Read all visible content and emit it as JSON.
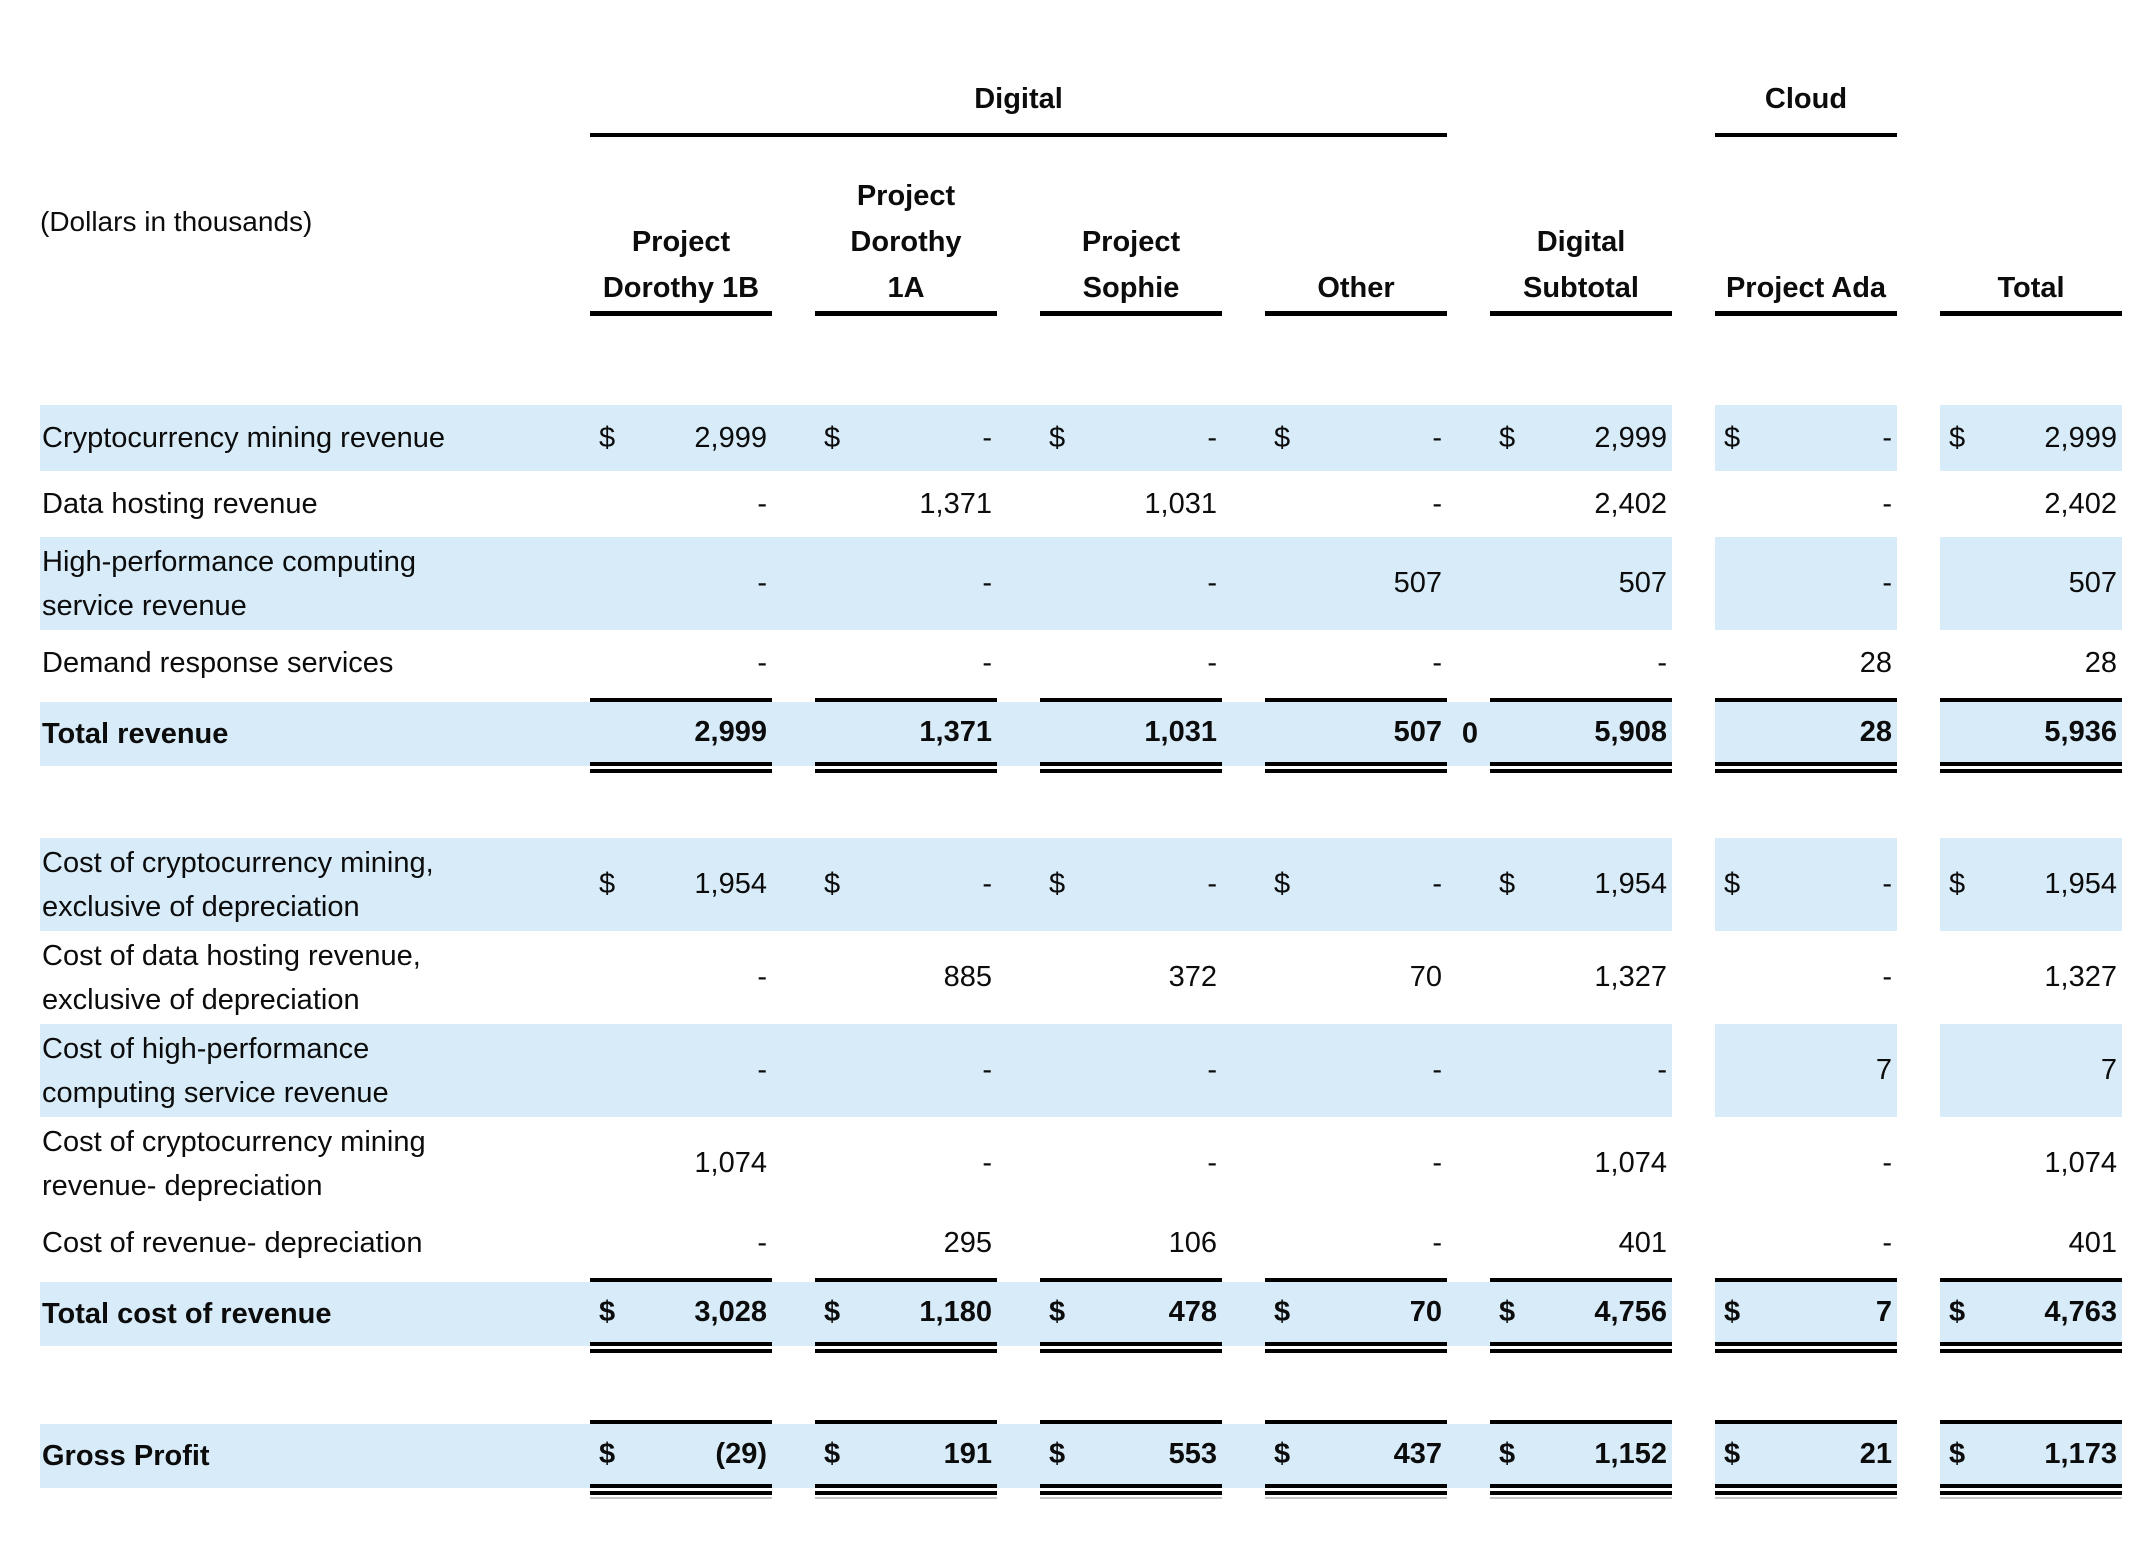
{
  "report": {
    "units_label": "(Dollars in thousands)",
    "currency_symbol": "$",
    "group_headers": [
      {
        "label": "Digital",
        "spans_columns": [
          "Project Dorothy 1B",
          "Project Dorothy 1A",
          "Project Sophie",
          "Other"
        ]
      },
      {
        "label": "Cloud",
        "spans_columns": [
          "Project Ada"
        ]
      }
    ],
    "columns": [
      {
        "label_lines": [
          "Project",
          "Dorothy 1B"
        ]
      },
      {
        "label_lines": [
          "Project",
          "Dorothy",
          "1A"
        ]
      },
      {
        "label_lines": [
          "Project",
          "Sophie"
        ]
      },
      {
        "label_lines": [
          "Other"
        ]
      },
      {
        "label_lines": [
          "Digital",
          "Subtotal"
        ]
      },
      {
        "label_lines": [
          "Project Ada"
        ]
      },
      {
        "label_lines": [
          "Total"
        ]
      }
    ],
    "rows": [
      {
        "label_lines": [
          "Cryptocurrency mining revenue"
        ],
        "highlight": true,
        "bold": false,
        "dollar": true,
        "values": [
          "2,999",
          "-",
          "-",
          "-",
          "2,999",
          "-",
          "2,999"
        ]
      },
      {
        "label_lines": [
          "Data hosting revenue"
        ],
        "highlight": false,
        "bold": false,
        "dollar": false,
        "values": [
          "-",
          "1,371",
          "1,031",
          "-",
          "2,402",
          "-",
          "2,402"
        ]
      },
      {
        "label_lines": [
          "High-performance computing",
          "service revenue"
        ],
        "highlight": true,
        "bold": false,
        "dollar": false,
        "values": [
          "-",
          "-",
          "-",
          "507",
          "507",
          "-",
          "507"
        ]
      },
      {
        "label_lines": [
          "Demand response services"
        ],
        "highlight": false,
        "bold": false,
        "dollar": false,
        "values": [
          "-",
          "-",
          "-",
          "-",
          "-",
          "28",
          "28"
        ]
      },
      {
        "label_lines": [
          "Total revenue"
        ],
        "highlight": true,
        "bold": true,
        "dollar": false,
        "values": [
          "2,999",
          "1,371",
          "1,031",
          "507",
          "5,908",
          "28",
          "5,936"
        ],
        "rules": "double",
        "spacer_after": true,
        "extra_value": {
          "after_col": 3,
          "text": "0"
        }
      },
      {
        "label_lines": [
          "Cost of cryptocurrency mining,",
          "exclusive of depreciation"
        ],
        "highlight": true,
        "bold": false,
        "dollar": true,
        "values": [
          "1,954",
          "-",
          "-",
          "-",
          "1,954",
          "-",
          "1,954"
        ]
      },
      {
        "label_lines": [
          "Cost of data hosting revenue,",
          "exclusive of depreciation"
        ],
        "highlight": false,
        "bold": false,
        "dollar": false,
        "values": [
          "-",
          "885",
          "372",
          "70",
          "1,327",
          "-",
          "1,327"
        ]
      },
      {
        "label_lines": [
          "Cost of high-performance",
          "computing service revenue"
        ],
        "highlight": true,
        "bold": false,
        "dollar": false,
        "values": [
          "-",
          "-",
          "-",
          "-",
          "-",
          "7",
          "7"
        ]
      },
      {
        "label_lines": [
          "Cost of cryptocurrency mining",
          "revenue- depreciation"
        ],
        "highlight": false,
        "bold": false,
        "dollar": false,
        "values": [
          "1,074",
          "-",
          "-",
          "-",
          "1,074",
          "-",
          "1,074"
        ]
      },
      {
        "label_lines": [
          "Cost of revenue- depreciation"
        ],
        "highlight": false,
        "bold": false,
        "dollar": false,
        "values": [
          "-",
          "295",
          "106",
          "-",
          "401",
          "-",
          "401"
        ]
      },
      {
        "label_lines": [
          "Total cost of revenue"
        ],
        "highlight": true,
        "bold": true,
        "dollar": true,
        "values": [
          "3,028",
          "1,180",
          "478",
          "70",
          "4,756",
          "7",
          "4,763"
        ],
        "rules": "double",
        "spacer_after": true
      },
      {
        "label_lines": [
          "Gross Profit"
        ],
        "highlight": true,
        "bold": true,
        "dollar": true,
        "values": [
          "(29)",
          "191",
          "553",
          "437",
          "1,152",
          "21",
          "1,173"
        ],
        "rules": "double-faint"
      }
    ]
  }
}
